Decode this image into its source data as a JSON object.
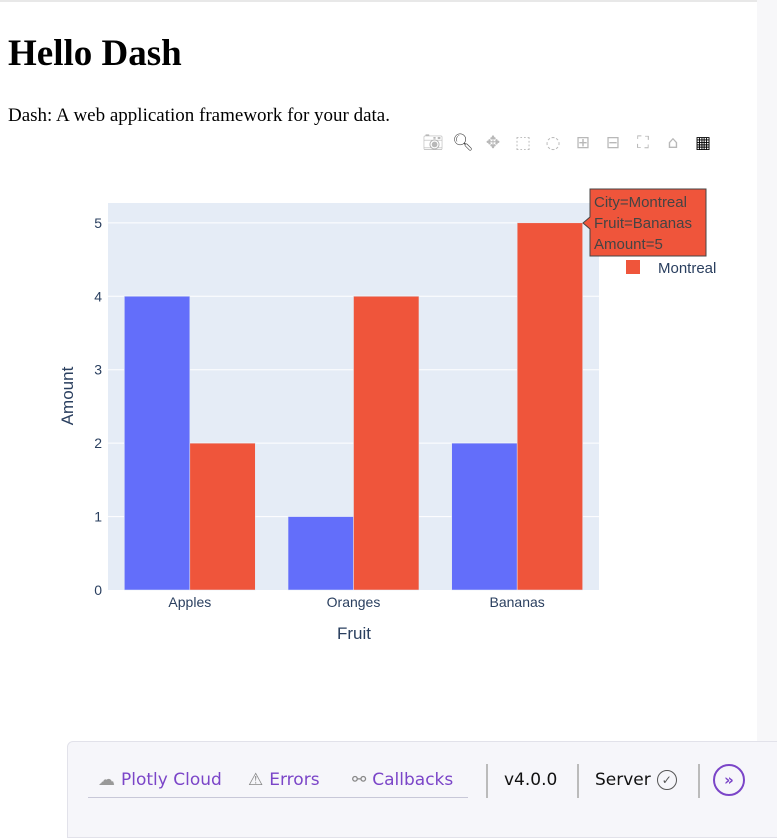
{
  "page": {
    "title": "Hello Dash",
    "subtitle": "Dash: A web application framework for your data."
  },
  "modebar": {
    "icons": [
      "camera-icon",
      "zoom-icon",
      "pan-icon",
      "box-select-icon",
      "lasso-icon",
      "zoom-in-icon",
      "zoom-out-icon",
      "autoscale-icon",
      "reset-axes-icon",
      "plotly-logo-icon"
    ]
  },
  "chart_data": {
    "type": "bar",
    "barmode": "group",
    "categories": [
      "Apples",
      "Oranges",
      "Bananas"
    ],
    "series": [
      {
        "color": "#636efa",
        "values": [
          4,
          1,
          2
        ]
      },
      {
        "name": "Montreal",
        "color": "#ef553b",
        "values": [
          2,
          4,
          5
        ]
      }
    ],
    "xlabel": "Fruit",
    "ylabel": "Amount",
    "ylim": [
      0,
      5.27
    ],
    "yticks": [
      "0",
      "1",
      "2",
      "3",
      "4",
      "5"
    ],
    "grid": true,
    "plot_bgcolor": "#e5ecf6",
    "legend": {
      "placement": "right",
      "visible_entries": [
        "Montreal"
      ]
    },
    "tooltip": {
      "lines": [
        "City=Montreal",
        "Fruit=Bananas",
        "Amount=5"
      ]
    }
  },
  "footer": {
    "plotly_cloud": "Plotly Cloud",
    "errors": "Errors",
    "callbacks": "Callbacks",
    "version": "v4.0.0",
    "server": "Server",
    "expand_icon": "»",
    "accent": "#7b45c8"
  }
}
